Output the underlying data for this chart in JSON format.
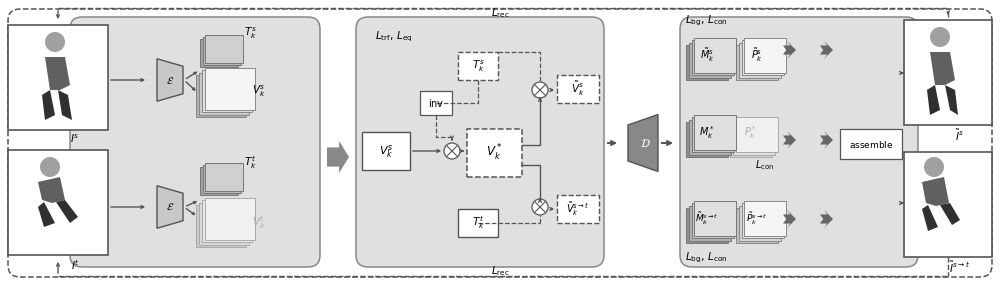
{
  "fig_width": 10.0,
  "fig_height": 2.85,
  "dpi": 100,
  "bg_color": "#ffffff",
  "panel_color": "#e0e0e0",
  "panel_edge": "#888888",
  "box_color": "#f5f5f5",
  "box_white": "#ffffff",
  "dashed_color": "#555555",
  "arrow_color": "#555555",
  "outer_dashed_color": "#555555",
  "stack_dark": "#b0b0b0",
  "stack_mid": "#d0d0d0",
  "stack_light": "#f0f0f0",
  "stack_white": "#fafafa",
  "image_bg": "#e8e8e8",
  "trap_fill": "#b0b0b0",
  "decode_fill": "#888888"
}
